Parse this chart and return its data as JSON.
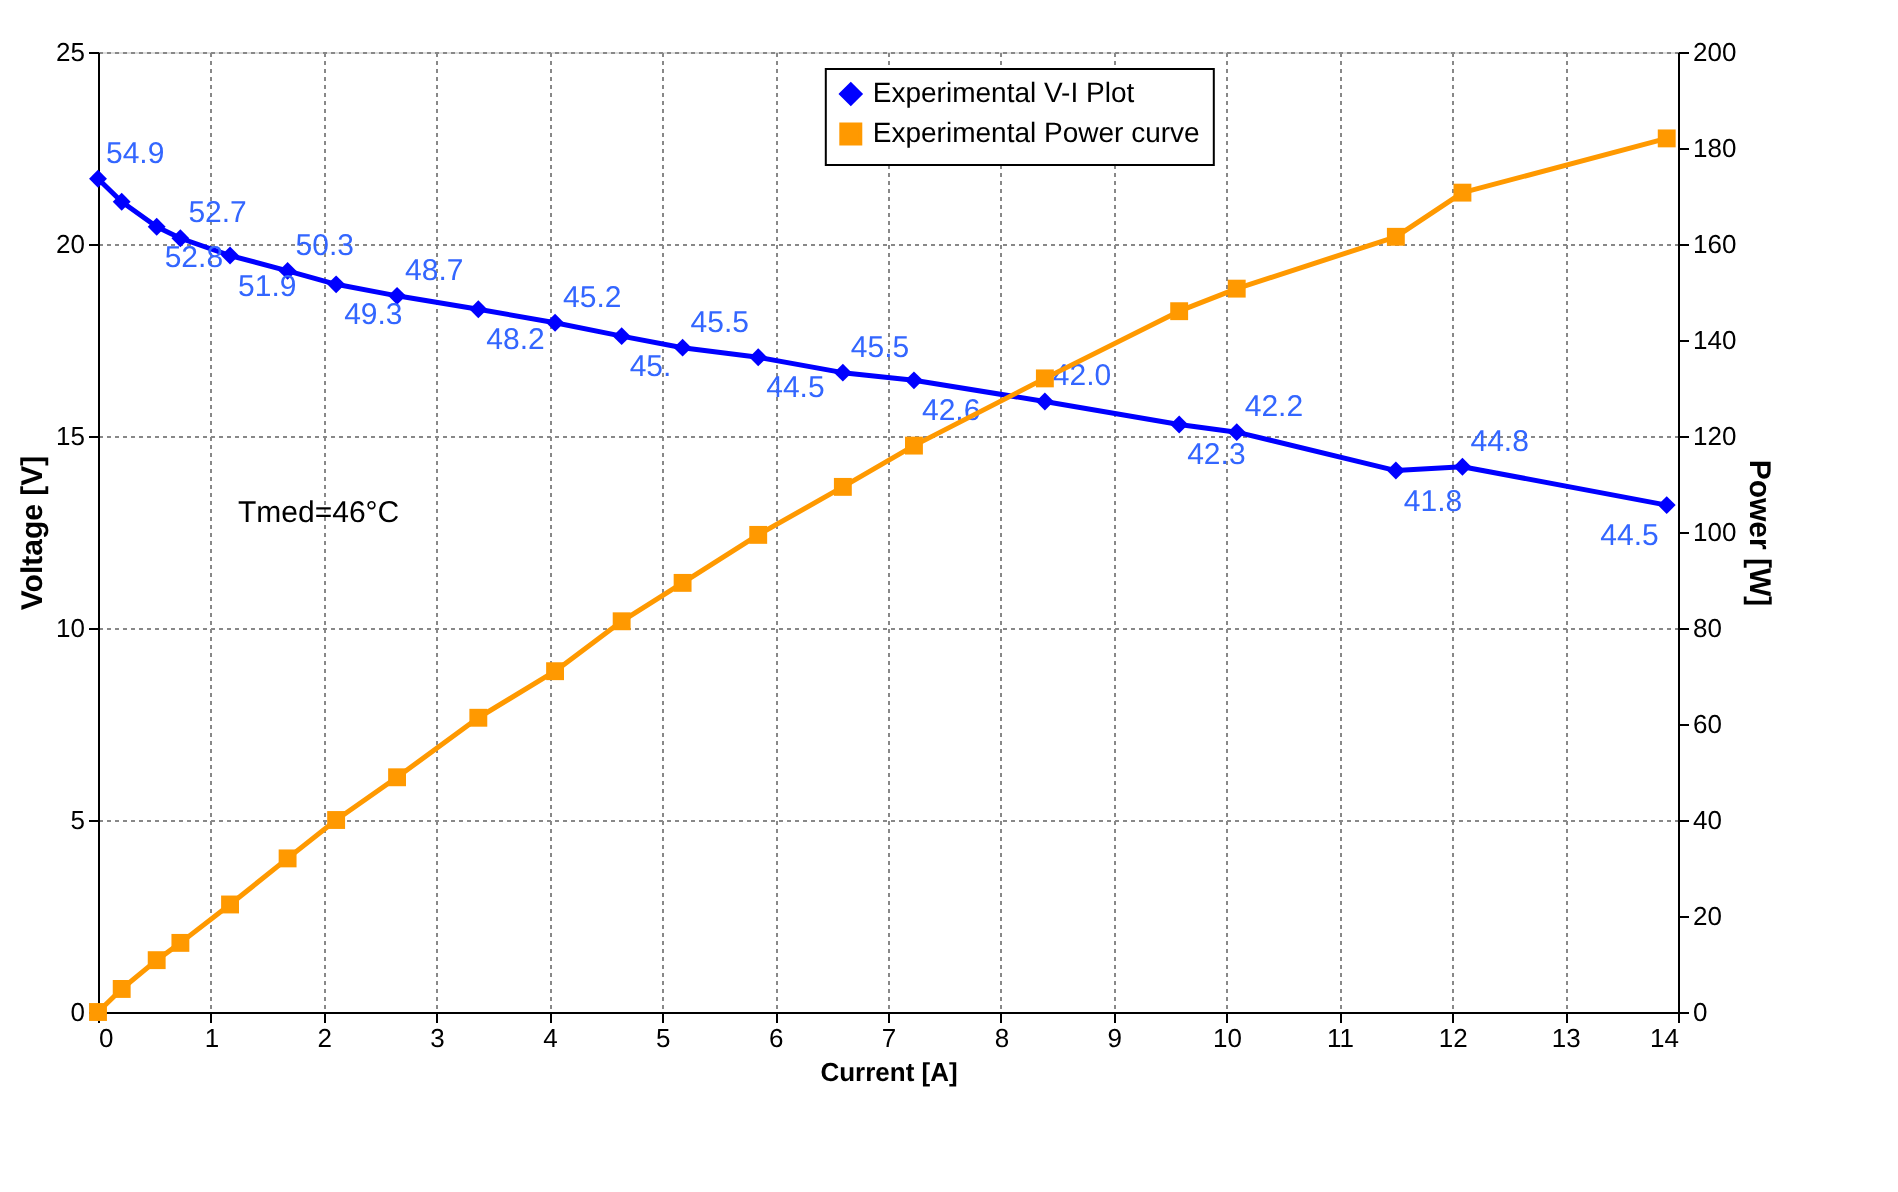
{
  "chart_data": {
    "type": "line",
    "xlabel": "Current [A]",
    "ylabel": "Voltage [V]",
    "y2label": "Power [W]",
    "x": [
      0,
      0.21,
      0.52,
      0.73,
      1.17,
      1.68,
      2.11,
      2.65,
      3.37,
      4.05,
      4.64,
      5.18,
      5.85,
      6.6,
      7.23,
      8.39,
      9.58,
      10.09,
      11.5,
      12.09,
      13.9
    ],
    "series": [
      {
        "name": "Experimental V-I Plot",
        "color": "#0000ff",
        "marker": "diamond",
        "values": [
          21.7,
          21.1,
          20.45,
          20.15,
          19.7,
          19.3,
          18.95,
          18.65,
          18.3,
          17.95,
          17.6,
          17.3,
          17.05,
          16.65,
          16.45,
          15.9,
          15.3,
          15.1,
          14.1,
          14.2,
          13.2
        ]
      },
      {
        "name": "Experimental Power curve",
        "color": "#ff9900",
        "marker": "square",
        "axis": "y2",
        "values": [
          0,
          4.8,
          10.8,
          14.4,
          22.4,
          32,
          40,
          48.9,
          61.3,
          71,
          81.4,
          89.4,
          99.4,
          109.4,
          118,
          132,
          146,
          150.7,
          161.5,
          170.7,
          182
        ]
      }
    ],
    "xlim": [
      0,
      14
    ],
    "xticks": [
      0,
      1,
      2,
      3,
      4,
      5,
      6,
      7,
      8,
      9,
      10,
      11,
      12,
      13,
      14
    ],
    "ylim": [
      0,
      25
    ],
    "yticks": [
      0,
      5,
      10,
      15,
      20,
      25
    ],
    "y2lim": [
      0,
      200
    ],
    "y2ticks": [
      0,
      20,
      40,
      60,
      80,
      100,
      120,
      140,
      160,
      180,
      200
    ],
    "annotations": [
      "Tmed=46°C",
      {
        "text": "54.9",
        "x": 0,
        "y": 21.7
      },
      {
        "text": "52.8",
        "x": 0.52,
        "y": 20.45
      },
      {
        "text": "52.7",
        "x": 0.73,
        "y": 20.15
      },
      {
        "text": "51.9",
        "x": 1.17,
        "y": 19.7
      },
      {
        "text": "50.3",
        "x": 1.68,
        "y": 19.3
      },
      {
        "text": "49.3",
        "x": 2.11,
        "y": 18.95
      },
      {
        "text": "48.7",
        "x": 2.65,
        "y": 18.65
      },
      {
        "text": "48.2",
        "x": 3.37,
        "y": 18.3
      },
      {
        "text": "45.2",
        "x": 4.05,
        "y": 17.95
      },
      {
        "text": "45.",
        "x": 4.64,
        "y": 17.6
      },
      {
        "text": "45.5",
        "x": 5.18,
        "y": 17.3
      },
      {
        "text": "44.5",
        "x": 5.85,
        "y": 17.05
      },
      {
        "text": "45.5",
        "x": 6.6,
        "y": 16.65
      },
      {
        "text": "42.6",
        "x": 7.23,
        "y": 16.45
      },
      {
        "text": "42.0",
        "x": 8.39,
        "y": 15.9
      },
      {
        "text": "42.3",
        "x": 9.58,
        "y": 15.3
      },
      {
        "text": "42.2",
        "x": 10.09,
        "y": 15.1
      },
      {
        "text": "41.8",
        "x": 11.5,
        "y": 14.1
      },
      {
        "text": "44.8",
        "x": 12.09,
        "y": 14.2
      },
      {
        "text": "44.5",
        "x": 13.9,
        "y": 13.2
      }
    ],
    "grid": true,
    "legend": "top right",
    "line_style": "solid"
  }
}
